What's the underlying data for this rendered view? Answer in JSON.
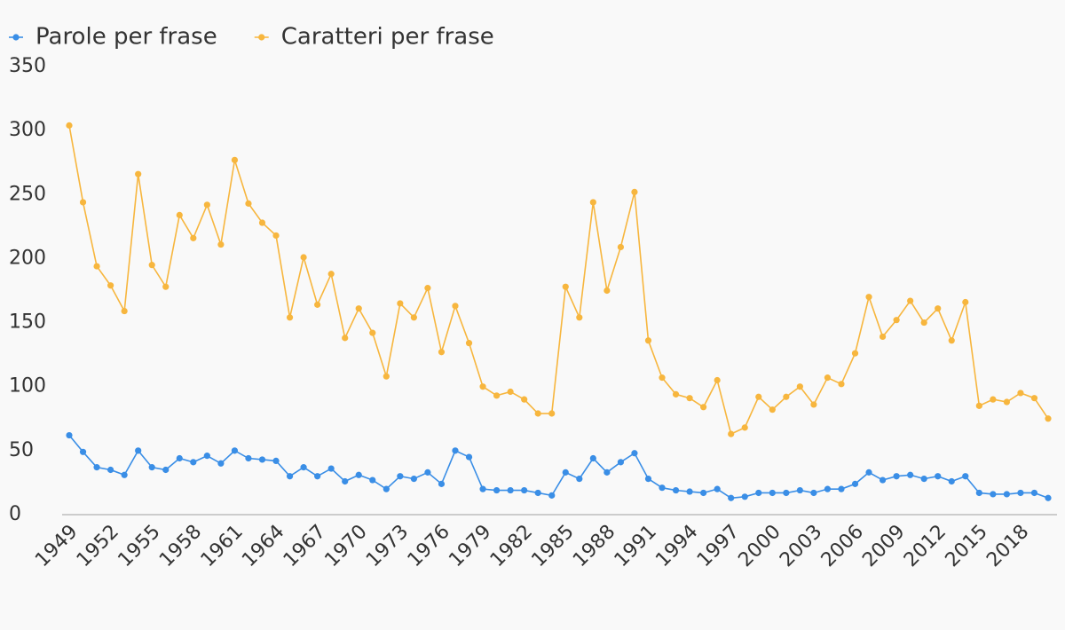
{
  "chart_data": {
    "type": "line",
    "x": [
      1949,
      1950,
      1951,
      1952,
      1953,
      1954,
      1955,
      1956,
      1957,
      1958,
      1959,
      1960,
      1961,
      1962,
      1963,
      1964,
      1965,
      1966,
      1967,
      1968,
      1969,
      1970,
      1971,
      1972,
      1973,
      1974,
      1975,
      1976,
      1977,
      1978,
      1979,
      1980,
      1981,
      1982,
      1983,
      1984,
      1985,
      1986,
      1987,
      1988,
      1989,
      1990,
      1991,
      1992,
      1993,
      1994,
      1995,
      1996,
      1997,
      1998,
      1999,
      2000,
      2001,
      2002,
      2003,
      2004,
      2005,
      2006,
      2007,
      2008,
      2009,
      2010,
      2011,
      2012,
      2013,
      2014,
      2015,
      2016,
      2017,
      2018,
      2019,
      2020
    ],
    "series": [
      {
        "name": "Parole per frase",
        "color": "#3a8ee6",
        "values": [
          62,
          49,
          37,
          35,
          31,
          50,
          37,
          35,
          44,
          41,
          46,
          40,
          50,
          44,
          43,
          42,
          30,
          37,
          30,
          36,
          26,
          31,
          27,
          20,
          30,
          28,
          33,
          24,
          50,
          45,
          20,
          19,
          19,
          19,
          17,
          15,
          33,
          28,
          44,
          33,
          41,
          48,
          28,
          21,
          19,
          18,
          17,
          20,
          13,
          14,
          17,
          17,
          17,
          19,
          17,
          20,
          20,
          24,
          33,
          27,
          30,
          31,
          28,
          30,
          26,
          30,
          17,
          16,
          16,
          17,
          17,
          13
        ]
      },
      {
        "name": "Caratteri per frase",
        "color": "#f7b63e",
        "values": [
          304,
          244,
          194,
          179,
          159,
          266,
          195,
          178,
          234,
          216,
          242,
          211,
          277,
          243,
          228,
          218,
          154,
          201,
          164,
          188,
          138,
          161,
          142,
          108,
          165,
          154,
          177,
          127,
          163,
          134,
          100,
          93,
          96,
          90,
          79,
          79,
          178,
          154,
          244,
          175,
          209,
          252,
          136,
          107,
          94,
          91,
          84,
          105,
          63,
          68,
          92,
          82,
          92,
          100,
          86,
          107,
          102,
          126,
          170,
          139,
          152,
          167,
          150,
          161,
          136,
          166,
          85,
          90,
          88,
          95,
          91,
          75
        ]
      }
    ],
    "xlim": [
      1949,
      2020
    ],
    "xticks": [
      1949,
      1952,
      1955,
      1958,
      1961,
      1964,
      1967,
      1970,
      1973,
      1976,
      1979,
      1982,
      1985,
      1988,
      1991,
      1994,
      1997,
      2000,
      2003,
      2006,
      2009,
      2012,
      2015,
      2018
    ],
    "ylim": [
      0,
      350
    ],
    "yticks": [
      0,
      50,
      100,
      150,
      200,
      250,
      300,
      350
    ],
    "grid": false,
    "legend": "top-left"
  }
}
